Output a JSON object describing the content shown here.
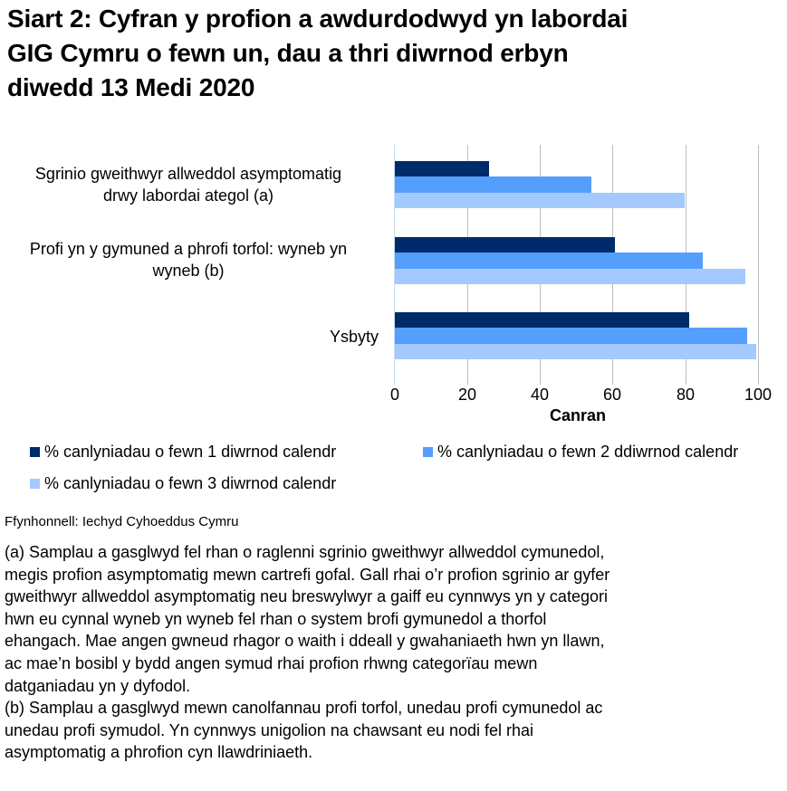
{
  "title_lines": [
    "Siart 2: Cyfran y profion a awdurdodwyd yn labordai",
    "GIG Cymru o fewn un, dau a thri diwrnod erbyn",
    "diwedd 13 Medi 2020"
  ],
  "chart_data": {
    "type": "bar",
    "orientation": "horizontal",
    "title": "Siart 2: Cyfran y profion a awdurdodwyd yn labordai GIG Cymru o fewn un, dau a thri diwrnod erbyn diwedd 13 Medi 2020",
    "categories": [
      "Sgrinio gweithwyr allweddol asymptomatig drwy labordai ategol (a)",
      "Profi yn y gymuned a phrofi torfol: wyneb yn wyneb (b)",
      "Ysbyty"
    ],
    "series": [
      {
        "name": "% canlyniadau o fewn 1 diwrnod calendr",
        "color": "#002b6b",
        "values": [
          26.0,
          60.6,
          81.0
        ]
      },
      {
        "name": "% canlyniadau o fewn 2 ddiwrnod calendr",
        "color": "#549efe",
        "values": [
          54.1,
          84.8,
          97.0
        ]
      },
      {
        "name": "% canlyniadau o fewn 3 diwrnod calendr",
        "color": "#a3c9fe",
        "values": [
          79.8,
          96.5,
          99.3
        ]
      }
    ],
    "xlabel": "Canran",
    "ylabel": "",
    "xlim": [
      0,
      100
    ],
    "xticks": [
      "0",
      "20",
      "40",
      "60",
      "80",
      "100"
    ],
    "grid": true,
    "legend_position": "bottom"
  },
  "category_label_lines": [
    [
      "Sgrinio gweithwyr allweddol asymptomatig",
      "drwy labordai ategol (a)"
    ],
    [
      "Profi yn y gymuned a phrofi torfol: wyneb yn",
      "wyneb (b)"
    ],
    [
      "Ysbyty"
    ]
  ],
  "source": "Ffynhonnell: Iechyd Cyhoeddus Cymru",
  "notes": {
    "a_lines": [
      "(a) Samplau a gasglwyd fel rhan o raglenni sgrinio gweithwyr allweddol cymunedol,",
      "megis profion asymptomatig mewn cartrefi gofal. Gall rhai o’r profion sgrinio ar gyfer",
      "gweithwyr allweddol asymptomatig neu breswylwyr a gaiff eu cynnwys yn y categori",
      "hwn eu cynnal wyneb yn wyneb fel rhan o system brofi gymunedol a thorfol",
      "ehangach. Mae angen gwneud rhagor o waith i ddeall y gwahaniaeth hwn yn llawn,",
      "ac mae’n bosibl y bydd angen symud rhai profion rhwng categorïau mewn",
      "datganiadau yn y dyfodol."
    ],
    "b_lines": [
      "(b) Samplau a gasglwyd mewn canolfannau profi torfol, unedau profi cymunedol ac",
      "unedau profi symudol. Yn cynnwys unigolion na chawsant eu nodi fel rhai",
      "asymptomatig a phrofion cyn llawdriniaeth."
    ]
  }
}
